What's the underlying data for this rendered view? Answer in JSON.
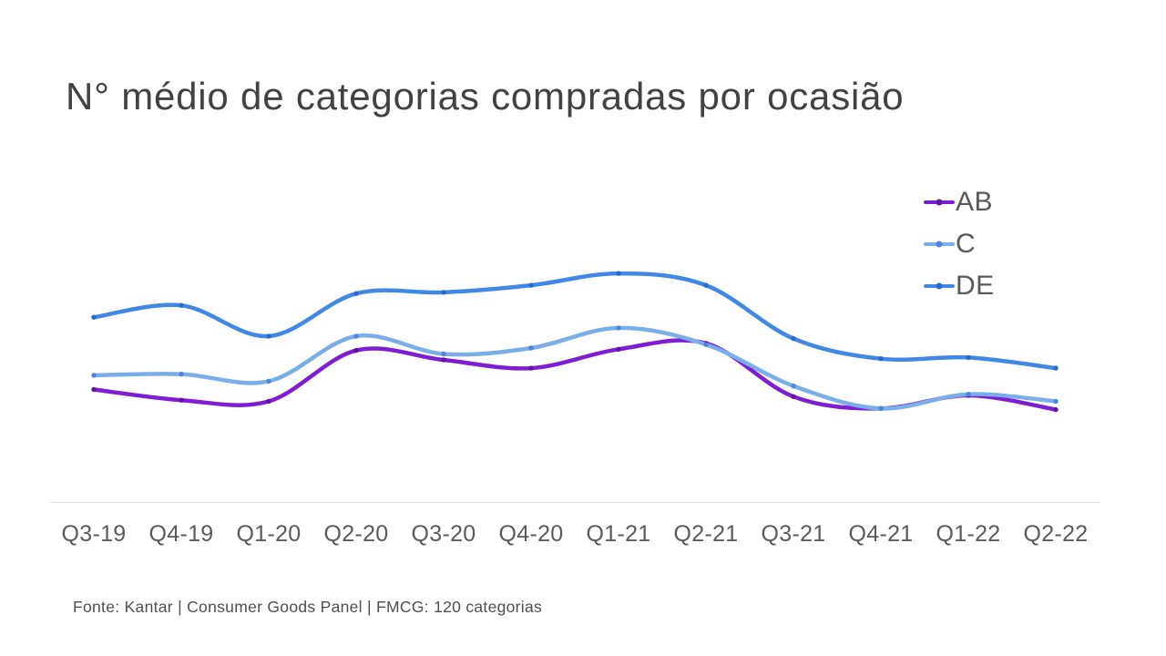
{
  "title": "N° médio de categorias compradas por ocasião",
  "source_note": "Fonte: Kantar | Consumer Goods Panel | FMCG: 120 categorias",
  "colors": {
    "title_text": "#424242",
    "axis_label_text": "#5a5a5a",
    "legend_text": "#595959",
    "axis_line": "#e1e1e1",
    "background": "#ffffff"
  },
  "chart_data": {
    "type": "line",
    "title": "N° médio de categorias compradas por ocasião",
    "categories": [
      "Q3-19",
      "Q4-19",
      "Q1-20",
      "Q2-20",
      "Q3-20",
      "Q4-20",
      "Q1-21",
      "Q2-21",
      "Q3-21",
      "Q4-21",
      "Q1-22",
      "Q2-22"
    ],
    "series": [
      {
        "name": "AB",
        "color": "#7e1dd2",
        "marker_color": "#6312a8",
        "values": [
          47.5,
          43,
          42.5,
          64,
          60,
          56.5,
          64.5,
          67,
          44.5,
          39.5,
          45,
          39
        ]
      },
      {
        "name": "C",
        "color": "#79aee8",
        "marker_color": "#4d86d8",
        "values": [
          53.5,
          54,
          51,
          70,
          62.5,
          65,
          73.5,
          66.5,
          49,
          39.5,
          45.5,
          42.5
        ]
      },
      {
        "name": "DE",
        "color": "#4187e4",
        "marker_color": "#2a6ace",
        "values": [
          78,
          83,
          70,
          88,
          88.5,
          91.5,
          96.5,
          91.5,
          69,
          60.5,
          61,
          56.5
        ]
      }
    ],
    "xlabel": "",
    "ylabel": "",
    "y_axis": {
      "visible": false,
      "unit": "relative index (chart shows no y-axis labels)",
      "ylim": [
        0,
        110
      ]
    },
    "grid": false,
    "legend_position": "top-right",
    "curve": "smooth",
    "markers": true
  }
}
